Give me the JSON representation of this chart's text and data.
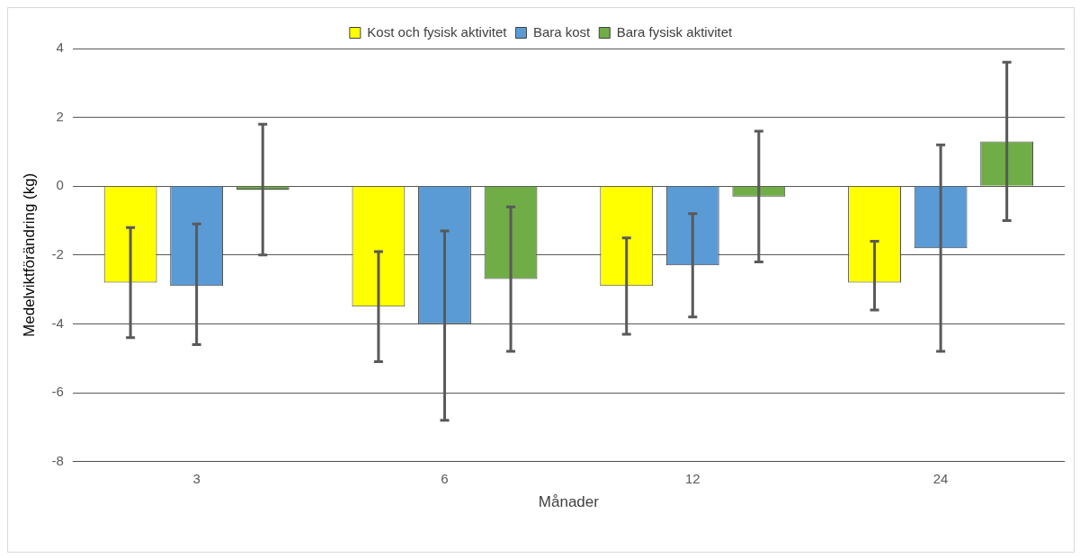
{
  "chart_data": {
    "type": "bar",
    "xlabel": "Månader",
    "ylabel": "Medelviktförändring (kg)",
    "categories": [
      "3",
      "6",
      "12",
      "24"
    ],
    "series": [
      {
        "name": "Kost och fysisk aktivitet",
        "color": "#ffff00",
        "values": [
          -2.8,
          -3.5,
          -2.9,
          -2.8
        ],
        "errors": [
          [
            -4.4,
            -1.2
          ],
          [
            -5.1,
            -1.9
          ],
          [
            -4.3,
            -1.5
          ],
          [
            -3.6,
            -1.6
          ]
        ]
      },
      {
        "name": "Bara kost",
        "color": "#5b9bd5",
        "values": [
          -2.9,
          -4.0,
          -2.3,
          -1.8
        ],
        "errors": [
          [
            -4.6,
            -1.1
          ],
          [
            -6.8,
            -1.3
          ],
          [
            -3.8,
            -0.8
          ],
          [
            -4.8,
            1.2
          ]
        ]
      },
      {
        "name": "Bara fysisk aktivitet",
        "color": "#70ad47",
        "values": [
          -0.1,
          -2.7,
          -0.3,
          1.3
        ],
        "errors": [
          [
            -2.0,
            1.8
          ],
          [
            -4.8,
            -0.6
          ],
          [
            -2.2,
            1.6
          ],
          [
            -1.0,
            3.6
          ]
        ]
      }
    ],
    "ylim": [
      -8,
      4
    ],
    "yticks": [
      -8,
      -6,
      -4,
      -2,
      0,
      2,
      4
    ],
    "grid": "y",
    "legend": "top"
  }
}
